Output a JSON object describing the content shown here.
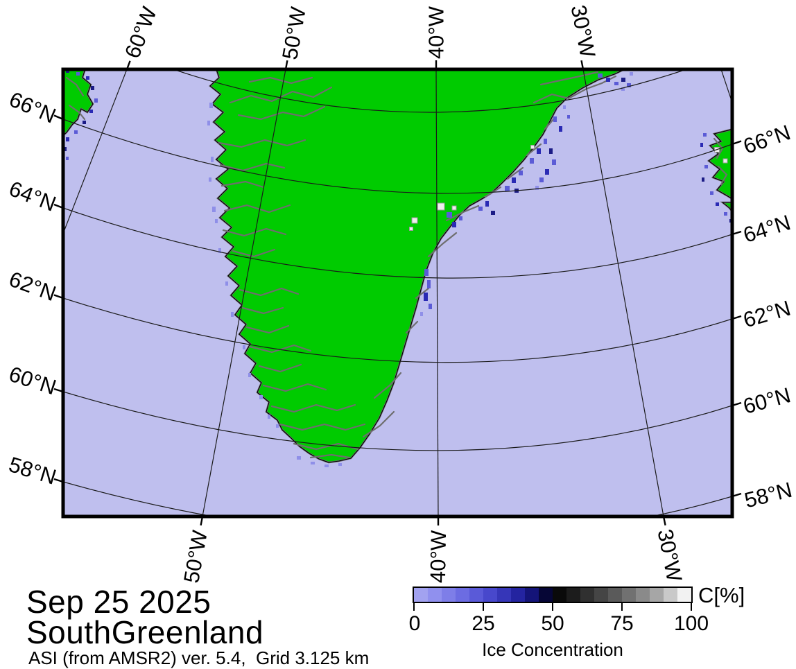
{
  "title_block": {
    "date": "Sep 25 2025",
    "region": "SouthGreenland",
    "source": "ASI (from AMSR2) ver. 5.4,  Grid 3.125 km"
  },
  "map": {
    "top_lon_labels": [
      "60°W",
      "50°W",
      "40°W",
      "30°W"
    ],
    "bottom_lon_labels": [
      "50°W",
      "40°W",
      "30°W"
    ],
    "left_lat_labels": [
      "66°N",
      "64°N",
      "62°N",
      "60°N",
      "58°N"
    ],
    "right_lat_labels": [
      "66°N",
      "64°N",
      "62°N",
      "60°N",
      "58°N"
    ]
  },
  "colorbar": {
    "title": "C[%]",
    "axis_label": "Ice Concentration",
    "ticks": [
      "0",
      "25",
      "50",
      "75",
      "100"
    ],
    "tick_values": [
      0,
      25,
      50,
      75,
      100
    ],
    "colors": [
      "#a2a2f0",
      "#9090ee",
      "#7e7ee8",
      "#6c6ce2",
      "#5a5ad8",
      "#4848cc",
      "#3636b8",
      "#2424a0",
      "#141478",
      "#060636",
      "#0a0a0a",
      "#1c1c1c",
      "#303030",
      "#454545",
      "#5a5a5a",
      "#717171",
      "#8a8a8a",
      "#a6a6a6",
      "#c9c9c9",
      "#f2f2f2"
    ]
  },
  "colors": {
    "sea": "#bfbfee",
    "land": "#00cb00",
    "coast_gray": "#6e6e6e",
    "grid": "#1a1a1a",
    "ice_light": "#8f8fe8",
    "ice_mid": "#5b5bd6",
    "ice_dark": "#2a2ab4",
    "ice_navy": "#1c1c86",
    "ice_white": "#efefef"
  }
}
